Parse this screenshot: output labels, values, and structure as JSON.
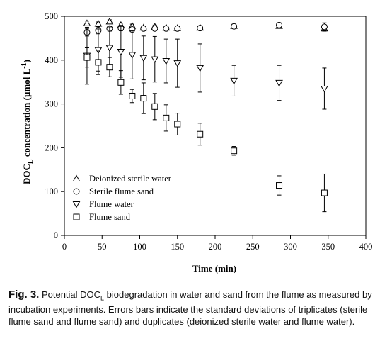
{
  "chart_data": {
    "type": "scatter",
    "xlabel": "Time (min)",
    "ylabel_main": "DOC",
    "ylabel_sub": "L",
    "ylabel_rest": " concentration (µmol L",
    "ylabel_sup": "-1",
    "ylabel_end": ")",
    "xlim": [
      0,
      400
    ],
    "ylim": [
      0,
      500
    ],
    "xticks": [
      "0",
      "50",
      "100",
      "150",
      "200",
      "250",
      "300",
      "350",
      "400"
    ],
    "yticks": [
      "0",
      "100",
      "200",
      "300",
      "400",
      "500"
    ],
    "grid": false,
    "legend_position": "bottom-left",
    "series": [
      {
        "name": "Deionized sterile water",
        "marker": "triangle-up",
        "points": [
          {
            "x": 30,
            "y": 484,
            "err": 5
          },
          {
            "x": 45,
            "y": 483,
            "err": 4
          },
          {
            "x": 60,
            "y": 488,
            "err": 4
          },
          {
            "x": 75,
            "y": 480,
            "err": 4
          },
          {
            "x": 90,
            "y": 478,
            "err": 4
          },
          {
            "x": 105,
            "y": 474,
            "err": 4
          },
          {
            "x": 120,
            "y": 476,
            "err": 4
          },
          {
            "x": 135,
            "y": 474,
            "err": 3
          },
          {
            "x": 150,
            "y": 473,
            "err": 3
          },
          {
            "x": 180,
            "y": 474,
            "err": 3
          },
          {
            "x": 225,
            "y": 478,
            "err": 3
          },
          {
            "x": 285,
            "y": 478,
            "err": 5
          },
          {
            "x": 345,
            "y": 472,
            "err": 6
          }
        ]
      },
      {
        "name": "Sterile flume sand",
        "marker": "circle",
        "points": [
          {
            "x": 30,
            "y": 463,
            "err": 8
          },
          {
            "x": 45,
            "y": 468,
            "err": 8
          },
          {
            "x": 60,
            "y": 472,
            "err": 6
          },
          {
            "x": 75,
            "y": 473,
            "err": 6
          },
          {
            "x": 90,
            "y": 470,
            "err": 5
          },
          {
            "x": 105,
            "y": 472,
            "err": 5
          },
          {
            "x": 120,
            "y": 472,
            "err": 4
          },
          {
            "x": 135,
            "y": 472,
            "err": 4
          },
          {
            "x": 150,
            "y": 472,
            "err": 4
          },
          {
            "x": 180,
            "y": 473,
            "err": 4
          },
          {
            "x": 225,
            "y": 477,
            "err": 5
          },
          {
            "x": 285,
            "y": 480,
            "err": 5
          },
          {
            "x": 345,
            "y": 476,
            "err": 9
          }
        ]
      },
      {
        "name": "Flume water",
        "marker": "triangle-down",
        "points": [
          {
            "x": 30,
            "y": 410,
            "err": 65
          },
          {
            "x": 45,
            "y": 423,
            "err": 48
          },
          {
            "x": 60,
            "y": 428,
            "err": 48
          },
          {
            "x": 75,
            "y": 419,
            "err": 58
          },
          {
            "x": 90,
            "y": 412,
            "err": 55
          },
          {
            "x": 105,
            "y": 405,
            "err": 50
          },
          {
            "x": 120,
            "y": 402,
            "err": 52
          },
          {
            "x": 135,
            "y": 398,
            "err": 50
          },
          {
            "x": 150,
            "y": 393,
            "err": 55
          },
          {
            "x": 180,
            "y": 382,
            "err": 55
          },
          {
            "x": 225,
            "y": 353,
            "err": 35
          },
          {
            "x": 285,
            "y": 348,
            "err": 40
          },
          {
            "x": 345,
            "y": 335,
            "err": 47
          }
        ]
      },
      {
        "name": "Flume sand",
        "marker": "square",
        "points": [
          {
            "x": 30,
            "y": 406,
            "err": 22
          },
          {
            "x": 45,
            "y": 395,
            "err": 28
          },
          {
            "x": 60,
            "y": 384,
            "err": 22
          },
          {
            "x": 75,
            "y": 349,
            "err": 27
          },
          {
            "x": 90,
            "y": 318,
            "err": 15
          },
          {
            "x": 105,
            "y": 313,
            "err": 35
          },
          {
            "x": 120,
            "y": 294,
            "err": 30
          },
          {
            "x": 135,
            "y": 268,
            "err": 30
          },
          {
            "x": 150,
            "y": 254,
            "err": 25
          },
          {
            "x": 180,
            "y": 231,
            "err": 25
          },
          {
            "x": 225,
            "y": 193,
            "err": 10
          },
          {
            "x": 285,
            "y": 114,
            "err": 22
          },
          {
            "x": 345,
            "y": 97,
            "err": 43
          }
        ]
      }
    ]
  },
  "caption": {
    "fig_label": "Fig. 3.",
    "text_before": " Potential DOC",
    "text_sub": "L",
    "text_after": " biodegradation in water and sand from the flume as measured by incubation experiments. Errors bars indicate the standard deviations of triplicates (sterile flume sand and flume sand) and duplicates (deionized sterile water and flume water)."
  }
}
